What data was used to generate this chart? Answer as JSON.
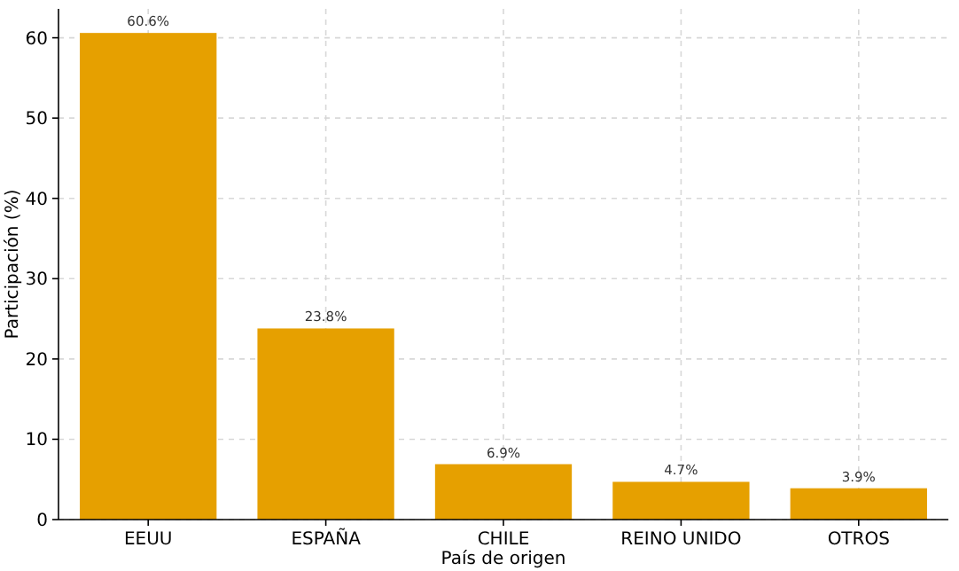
{
  "chart_data": {
    "type": "bar",
    "xlabel": "País de origen",
    "ylabel": "Participación (%)",
    "categories": [
      "EEUU",
      "ESPAÑA",
      "CHILE",
      "REINO UNIDO",
      "OTROS"
    ],
    "values": [
      60.6,
      23.8,
      6.9,
      4.7,
      3.9
    ],
    "value_labels": [
      "60.6%",
      "23.8%",
      "6.9%",
      "4.7%",
      "3.9%"
    ],
    "color": "#e6a000",
    "ylim": [
      0,
      63.6
    ],
    "yticks": [
      0,
      10,
      20,
      30,
      40,
      50,
      60
    ],
    "grid": true
  }
}
